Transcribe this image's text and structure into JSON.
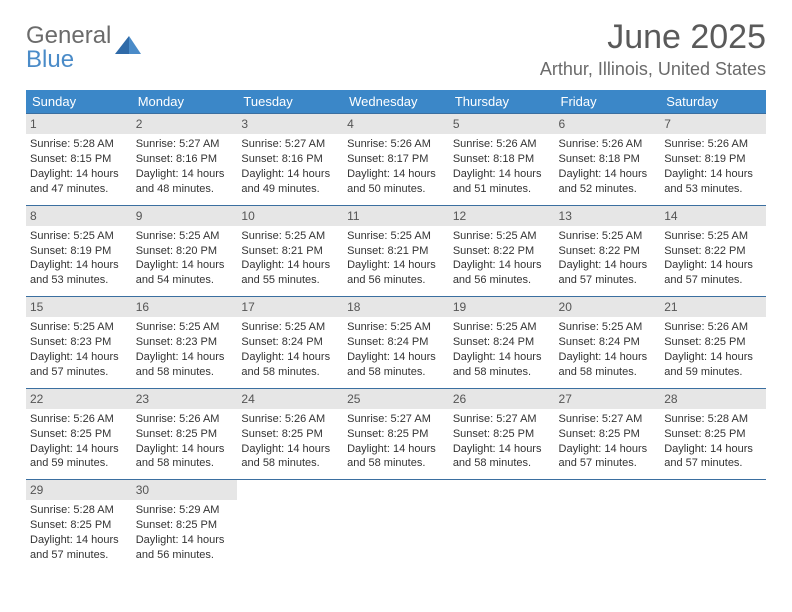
{
  "brand": {
    "name_top": "General",
    "name_bottom": "Blue",
    "color_primary": "#3b87c8",
    "color_text": "#6b6b6b"
  },
  "header": {
    "month_title": "June 2025",
    "location": "Arthur, Illinois, United States"
  },
  "days_of_week": [
    "Sunday",
    "Monday",
    "Tuesday",
    "Wednesday",
    "Thursday",
    "Friday",
    "Saturday"
  ],
  "colors": {
    "header_bg": "#3b87c8",
    "header_text": "#ffffff",
    "daynum_bg": "#e6e6e6",
    "week_border": "#3b6fa0",
    "body_text": "#333333"
  },
  "weeks": [
    [
      {
        "n": "1",
        "sr": "Sunrise: 5:28 AM",
        "ss": "Sunset: 8:15 PM",
        "d1": "Daylight: 14 hours",
        "d2": "and 47 minutes."
      },
      {
        "n": "2",
        "sr": "Sunrise: 5:27 AM",
        "ss": "Sunset: 8:16 PM",
        "d1": "Daylight: 14 hours",
        "d2": "and 48 minutes."
      },
      {
        "n": "3",
        "sr": "Sunrise: 5:27 AM",
        "ss": "Sunset: 8:16 PM",
        "d1": "Daylight: 14 hours",
        "d2": "and 49 minutes."
      },
      {
        "n": "4",
        "sr": "Sunrise: 5:26 AM",
        "ss": "Sunset: 8:17 PM",
        "d1": "Daylight: 14 hours",
        "d2": "and 50 minutes."
      },
      {
        "n": "5",
        "sr": "Sunrise: 5:26 AM",
        "ss": "Sunset: 8:18 PM",
        "d1": "Daylight: 14 hours",
        "d2": "and 51 minutes."
      },
      {
        "n": "6",
        "sr": "Sunrise: 5:26 AM",
        "ss": "Sunset: 8:18 PM",
        "d1": "Daylight: 14 hours",
        "d2": "and 52 minutes."
      },
      {
        "n": "7",
        "sr": "Sunrise: 5:26 AM",
        "ss": "Sunset: 8:19 PM",
        "d1": "Daylight: 14 hours",
        "d2": "and 53 minutes."
      }
    ],
    [
      {
        "n": "8",
        "sr": "Sunrise: 5:25 AM",
        "ss": "Sunset: 8:19 PM",
        "d1": "Daylight: 14 hours",
        "d2": "and 53 minutes."
      },
      {
        "n": "9",
        "sr": "Sunrise: 5:25 AM",
        "ss": "Sunset: 8:20 PM",
        "d1": "Daylight: 14 hours",
        "d2": "and 54 minutes."
      },
      {
        "n": "10",
        "sr": "Sunrise: 5:25 AM",
        "ss": "Sunset: 8:21 PM",
        "d1": "Daylight: 14 hours",
        "d2": "and 55 minutes."
      },
      {
        "n": "11",
        "sr": "Sunrise: 5:25 AM",
        "ss": "Sunset: 8:21 PM",
        "d1": "Daylight: 14 hours",
        "d2": "and 56 minutes."
      },
      {
        "n": "12",
        "sr": "Sunrise: 5:25 AM",
        "ss": "Sunset: 8:22 PM",
        "d1": "Daylight: 14 hours",
        "d2": "and 56 minutes."
      },
      {
        "n": "13",
        "sr": "Sunrise: 5:25 AM",
        "ss": "Sunset: 8:22 PM",
        "d1": "Daylight: 14 hours",
        "d2": "and 57 minutes."
      },
      {
        "n": "14",
        "sr": "Sunrise: 5:25 AM",
        "ss": "Sunset: 8:22 PM",
        "d1": "Daylight: 14 hours",
        "d2": "and 57 minutes."
      }
    ],
    [
      {
        "n": "15",
        "sr": "Sunrise: 5:25 AM",
        "ss": "Sunset: 8:23 PM",
        "d1": "Daylight: 14 hours",
        "d2": "and 57 minutes."
      },
      {
        "n": "16",
        "sr": "Sunrise: 5:25 AM",
        "ss": "Sunset: 8:23 PM",
        "d1": "Daylight: 14 hours",
        "d2": "and 58 minutes."
      },
      {
        "n": "17",
        "sr": "Sunrise: 5:25 AM",
        "ss": "Sunset: 8:24 PM",
        "d1": "Daylight: 14 hours",
        "d2": "and 58 minutes."
      },
      {
        "n": "18",
        "sr": "Sunrise: 5:25 AM",
        "ss": "Sunset: 8:24 PM",
        "d1": "Daylight: 14 hours",
        "d2": "and 58 minutes."
      },
      {
        "n": "19",
        "sr": "Sunrise: 5:25 AM",
        "ss": "Sunset: 8:24 PM",
        "d1": "Daylight: 14 hours",
        "d2": "and 58 minutes."
      },
      {
        "n": "20",
        "sr": "Sunrise: 5:25 AM",
        "ss": "Sunset: 8:24 PM",
        "d1": "Daylight: 14 hours",
        "d2": "and 58 minutes."
      },
      {
        "n": "21",
        "sr": "Sunrise: 5:26 AM",
        "ss": "Sunset: 8:25 PM",
        "d1": "Daylight: 14 hours",
        "d2": "and 59 minutes."
      }
    ],
    [
      {
        "n": "22",
        "sr": "Sunrise: 5:26 AM",
        "ss": "Sunset: 8:25 PM",
        "d1": "Daylight: 14 hours",
        "d2": "and 59 minutes."
      },
      {
        "n": "23",
        "sr": "Sunrise: 5:26 AM",
        "ss": "Sunset: 8:25 PM",
        "d1": "Daylight: 14 hours",
        "d2": "and 58 minutes."
      },
      {
        "n": "24",
        "sr": "Sunrise: 5:26 AM",
        "ss": "Sunset: 8:25 PM",
        "d1": "Daylight: 14 hours",
        "d2": "and 58 minutes."
      },
      {
        "n": "25",
        "sr": "Sunrise: 5:27 AM",
        "ss": "Sunset: 8:25 PM",
        "d1": "Daylight: 14 hours",
        "d2": "and 58 minutes."
      },
      {
        "n": "26",
        "sr": "Sunrise: 5:27 AM",
        "ss": "Sunset: 8:25 PM",
        "d1": "Daylight: 14 hours",
        "d2": "and 58 minutes."
      },
      {
        "n": "27",
        "sr": "Sunrise: 5:27 AM",
        "ss": "Sunset: 8:25 PM",
        "d1": "Daylight: 14 hours",
        "d2": "and 57 minutes."
      },
      {
        "n": "28",
        "sr": "Sunrise: 5:28 AM",
        "ss": "Sunset: 8:25 PM",
        "d1": "Daylight: 14 hours",
        "d2": "and 57 minutes."
      }
    ],
    [
      {
        "n": "29",
        "sr": "Sunrise: 5:28 AM",
        "ss": "Sunset: 8:25 PM",
        "d1": "Daylight: 14 hours",
        "d2": "and 57 minutes."
      },
      {
        "n": "30",
        "sr": "Sunrise: 5:29 AM",
        "ss": "Sunset: 8:25 PM",
        "d1": "Daylight: 14 hours",
        "d2": "and 56 minutes."
      },
      null,
      null,
      null,
      null,
      null
    ]
  ]
}
